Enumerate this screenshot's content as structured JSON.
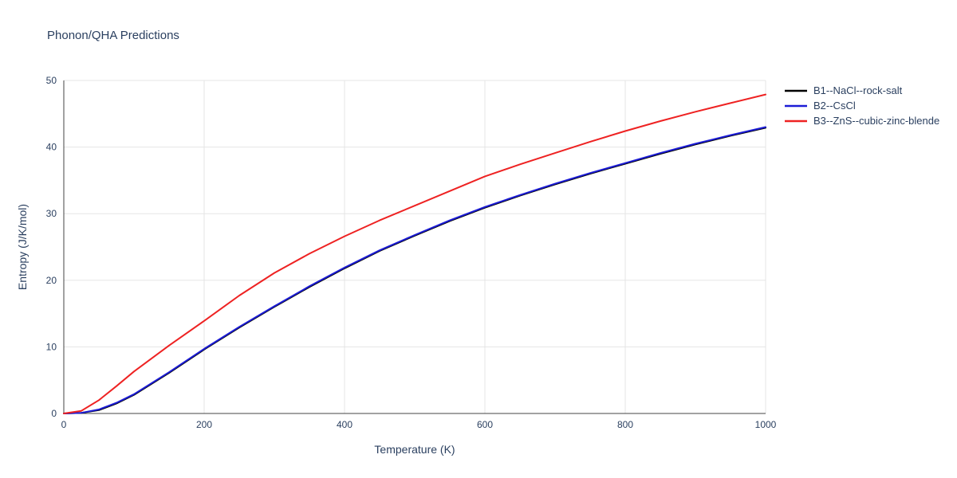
{
  "chart_data": {
    "type": "line",
    "title": "Phonon/QHA Predictions",
    "xlabel": "Temperature (K)",
    "ylabel": "Entropy (J/K/mol)",
    "xlim": [
      0,
      1000
    ],
    "ylim": [
      0,
      50
    ],
    "xticks": [
      0,
      200,
      400,
      600,
      800,
      1000
    ],
    "yticks": [
      0,
      10,
      20,
      30,
      40,
      50
    ],
    "grid": true,
    "grid_color": "#e5e5e5",
    "axis_color": "#444444",
    "legend_position": "top-right-outside",
    "x": [
      0,
      25,
      50,
      75,
      100,
      150,
      200,
      250,
      300,
      350,
      400,
      450,
      500,
      550,
      600,
      650,
      700,
      750,
      800,
      850,
      900,
      950,
      1000
    ],
    "series": [
      {
        "name": "B1--NaCl--rock-salt",
        "color": "#000000",
        "values": [
          0,
          0.1,
          0.5,
          1.5,
          2.8,
          6.1,
          9.6,
          12.9,
          16.0,
          19.0,
          21.8,
          24.4,
          26.7,
          28.9,
          30.9,
          32.7,
          34.4,
          36.0,
          37.5,
          39.0,
          40.4,
          41.7,
          42.9
        ]
      },
      {
        "name": "B2--CsCl",
        "color": "#1c1cd6",
        "values": [
          0,
          0.1,
          0.6,
          1.6,
          2.9,
          6.2,
          9.7,
          13.0,
          16.1,
          19.1,
          21.9,
          24.5,
          26.8,
          29.0,
          31.0,
          32.8,
          34.5,
          36.1,
          37.6,
          39.1,
          40.5,
          41.8,
          43.0
        ]
      },
      {
        "name": "B3--ZnS--cubic-zinc-blende",
        "color": "#ee2222",
        "values": [
          0,
          0.4,
          2.0,
          4.1,
          6.3,
          10.2,
          13.9,
          17.7,
          21.1,
          24.0,
          26.6,
          29.0,
          31.2,
          33.4,
          35.6,
          37.4,
          39.1,
          40.8,
          42.4,
          43.9,
          45.3,
          46.6,
          47.9
        ]
      }
    ]
  }
}
